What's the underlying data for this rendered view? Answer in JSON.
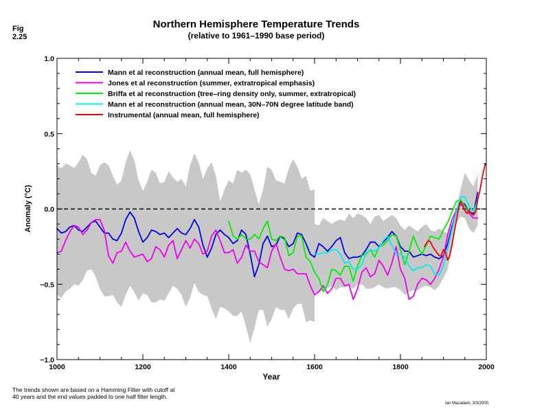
{
  "figure": {
    "label": "Fig\n2.25",
    "footnote": "The trends shown are based on a Hamming Filter with cutoff at\n40 years and the end values padded to one half filter length.",
    "credit": "Ian Macadam, 3/3/2000."
  },
  "chart_data": {
    "type": "line",
    "title": "Northern Hemisphere Temperature Trends",
    "subtitle": "(relative to 1961–1990 base period)",
    "xlabel": "Year",
    "ylabel": "Anomaly (°C)",
    "xlim": [
      1000,
      2000
    ],
    "ylim": [
      -1.0,
      1.0
    ],
    "xticks": [
      1000,
      1200,
      1400,
      1600,
      1800,
      2000
    ],
    "yticks": [
      -1.0,
      -0.5,
      0.0,
      0.5,
      1.0
    ],
    "xtick_labels": [
      "1000",
      "1200",
      "1400",
      "1600",
      "1800",
      "2000"
    ],
    "ytick_labels": [
      "−1.0",
      "−0.5",
      "0.0",
      "0.5",
      "1.0"
    ],
    "zero_line": {
      "y": 0.0,
      "style": "dashed",
      "color": "#000000"
    },
    "legend": {
      "position": "top-left"
    },
    "uncertainty_band": {
      "color": "#c8c8c8",
      "x": [
        1000,
        1010,
        1020,
        1030,
        1040,
        1050,
        1060,
        1070,
        1080,
        1090,
        1100,
        1110,
        1120,
        1130,
        1140,
        1150,
        1160,
        1170,
        1180,
        1190,
        1200,
        1210,
        1220,
        1230,
        1240,
        1250,
        1260,
        1270,
        1280,
        1290,
        1300,
        1310,
        1320,
        1330,
        1340,
        1350,
        1360,
        1370,
        1380,
        1390,
        1400,
        1410,
        1420,
        1430,
        1440,
        1450,
        1460,
        1470,
        1480,
        1490,
        1500,
        1510,
        1520,
        1530,
        1540,
        1550,
        1560,
        1570,
        1580,
        1590,
        1600
      ],
      "upper": [
        0.29,
        0.27,
        0.3,
        0.29,
        0.27,
        0.31,
        0.36,
        0.33,
        0.24,
        0.22,
        0.29,
        0.31,
        0.29,
        0.22,
        0.16,
        0.19,
        0.31,
        0.39,
        0.32,
        0.19,
        0.12,
        0.18,
        0.26,
        0.24,
        0.17,
        0.18,
        0.25,
        0.21,
        0.18,
        0.2,
        0.15,
        0.29,
        0.37,
        0.31,
        0.2,
        0.27,
        0.31,
        0.22,
        0.05,
        0.13,
        0.19,
        0.17,
        0.26,
        0.24,
        0.26,
        0.23,
        0.13,
        0.03,
        0.13,
        0.28,
        0.26,
        0.19,
        0.18,
        0.17,
        0.27,
        0.33,
        0.28,
        0.2,
        0.22,
        0.12,
        0.13
      ],
      "lower": [
        -0.57,
        -0.59,
        -0.55,
        -0.53,
        -0.5,
        -0.51,
        -0.47,
        -0.41,
        -0.4,
        -0.45,
        -0.53,
        -0.58,
        -0.58,
        -0.57,
        -0.62,
        -0.65,
        -0.57,
        -0.51,
        -0.55,
        -0.61,
        -0.56,
        -0.57,
        -0.62,
        -0.62,
        -0.6,
        -0.61,
        -0.56,
        -0.51,
        -0.53,
        -0.57,
        -0.65,
        -0.59,
        -0.49,
        -0.55,
        -0.57,
        -0.58,
        -0.66,
        -0.73,
        -0.65,
        -0.66,
        -0.68,
        -0.71,
        -0.71,
        -0.68,
        -0.78,
        -0.89,
        -0.79,
        -0.67,
        -0.67,
        -0.78,
        -0.73,
        -0.65,
        -0.67,
        -0.67,
        -0.73,
        -0.66,
        -0.63,
        -0.63,
        -0.75,
        -0.74,
        -0.75
      ]
    },
    "band_late": {
      "x": [
        1600,
        1610,
        1620,
        1630,
        1640,
        1650,
        1660,
        1670,
        1680,
        1690,
        1700,
        1710,
        1720,
        1730,
        1740,
        1750,
        1760,
        1770,
        1780,
        1790,
        1800,
        1810,
        1820,
        1830,
        1840,
        1850,
        1860,
        1870,
        1880,
        1890,
        1900,
        1910,
        1920,
        1930,
        1940,
        1950,
        1960,
        1970,
        1980
      ],
      "upper": [
        -0.1,
        -0.11,
        -0.06,
        -0.08,
        -0.1,
        -0.08,
        -0.07,
        -0.08,
        -0.03,
        -0.06,
        -0.03,
        -0.04,
        -0.06,
        -0.1,
        -0.05,
        -0.04,
        -0.08,
        -0.06,
        -0.04,
        -0.06,
        -0.11,
        -0.14,
        -0.11,
        -0.13,
        -0.15,
        -0.12,
        -0.1,
        -0.14,
        -0.15,
        -0.13,
        -0.15,
        -0.16,
        -0.1,
        0.0,
        0.13,
        0.24,
        0.19,
        0.15,
        0.23
      ],
      "lower": [
        -0.56,
        -0.55,
        -0.54,
        -0.53,
        -0.51,
        -0.54,
        -0.52,
        -0.52,
        -0.51,
        -0.53,
        -0.5,
        -0.5,
        -0.53,
        -0.53,
        -0.52,
        -0.5,
        -0.52,
        -0.53,
        -0.52,
        -0.52,
        -0.54,
        -0.57,
        -0.55,
        -0.54,
        -0.54,
        -0.52,
        -0.51,
        -0.52,
        -0.54,
        -0.51,
        -0.46,
        -0.4,
        -0.25,
        -0.1,
        -0.05,
        -0.06,
        -0.13,
        -0.16,
        -0.11
      ]
    },
    "series": [
      {
        "name": "Mann et al reconstruction (annual mean, full hemisphere)",
        "color": "#0000dd",
        "x": [
          1000,
          1010,
          1020,
          1030,
          1040,
          1050,
          1060,
          1070,
          1080,
          1090,
          1100,
          1110,
          1120,
          1130,
          1140,
          1150,
          1160,
          1170,
          1180,
          1190,
          1200,
          1210,
          1220,
          1230,
          1240,
          1250,
          1260,
          1270,
          1280,
          1290,
          1300,
          1310,
          1320,
          1330,
          1340,
          1350,
          1360,
          1370,
          1380,
          1390,
          1400,
          1410,
          1420,
          1430,
          1440,
          1450,
          1460,
          1470,
          1480,
          1490,
          1500,
          1510,
          1520,
          1530,
          1540,
          1550,
          1560,
          1570,
          1580,
          1590,
          1600,
          1610,
          1620,
          1630,
          1640,
          1650,
          1660,
          1670,
          1680,
          1690,
          1700,
          1710,
          1720,
          1730,
          1740,
          1750,
          1760,
          1770,
          1780,
          1790,
          1800,
          1810,
          1820,
          1830,
          1840,
          1850,
          1860,
          1870,
          1880,
          1890,
          1900,
          1910,
          1920,
          1930,
          1940,
          1950,
          1960,
          1970,
          1980
        ],
        "y": [
          -0.13,
          -0.16,
          -0.15,
          -0.12,
          -0.11,
          -0.14,
          -0.15,
          -0.12,
          -0.09,
          -0.08,
          -0.12,
          -0.16,
          -0.16,
          -0.2,
          -0.21,
          -0.16,
          -0.07,
          -0.02,
          -0.06,
          -0.15,
          -0.22,
          -0.19,
          -0.14,
          -0.15,
          -0.17,
          -0.16,
          -0.19,
          -0.16,
          -0.13,
          -0.16,
          -0.17,
          -0.13,
          -0.07,
          -0.12,
          -0.24,
          -0.32,
          -0.26,
          -0.17,
          -0.14,
          -0.17,
          -0.19,
          -0.23,
          -0.21,
          -0.14,
          -0.17,
          -0.3,
          -0.45,
          -0.37,
          -0.23,
          -0.18,
          -0.25,
          -0.24,
          -0.18,
          -0.2,
          -0.25,
          -0.23,
          -0.16,
          -0.17,
          -0.23,
          -0.3,
          -0.32,
          -0.23,
          -0.25,
          -0.28,
          -0.25,
          -0.21,
          -0.19,
          -0.29,
          -0.33,
          -0.32,
          -0.32,
          -0.31,
          -0.27,
          -0.22,
          -0.22,
          -0.25,
          -0.22,
          -0.19,
          -0.15,
          -0.18,
          -0.25,
          -0.28,
          -0.28,
          -0.32,
          -0.31,
          -0.3,
          -0.31,
          -0.3,
          -0.32,
          -0.33,
          -0.31,
          -0.23,
          -0.12,
          -0.02,
          0.05,
          0.03,
          -0.02,
          -0.03,
          0.11
        ]
      },
      {
        "name": "Jones et al reconstruction (summer, extratropical emphasis)",
        "color": "#ee00ee",
        "x": [
          1000,
          1010,
          1020,
          1030,
          1040,
          1050,
          1060,
          1070,
          1080,
          1090,
          1100,
          1110,
          1120,
          1130,
          1140,
          1150,
          1160,
          1170,
          1180,
          1190,
          1200,
          1210,
          1220,
          1230,
          1240,
          1250,
          1260,
          1270,
          1280,
          1290,
          1300,
          1310,
          1320,
          1330,
          1340,
          1350,
          1360,
          1370,
          1380,
          1390,
          1400,
          1410,
          1420,
          1430,
          1440,
          1450,
          1460,
          1470,
          1480,
          1490,
          1500,
          1510,
          1520,
          1530,
          1540,
          1550,
          1560,
          1570,
          1580,
          1590,
          1600,
          1610,
          1620,
          1630,
          1640,
          1650,
          1660,
          1670,
          1680,
          1690,
          1700,
          1710,
          1720,
          1730,
          1740,
          1750,
          1760,
          1770,
          1780,
          1790,
          1800,
          1810,
          1820,
          1830,
          1840,
          1850,
          1860,
          1870,
          1880,
          1890,
          1900,
          1910,
          1920,
          1930,
          1940,
          1950,
          1960,
          1970,
          1980
        ],
        "y": [
          -0.29,
          -0.28,
          -0.21,
          -0.15,
          -0.11,
          -0.12,
          -0.17,
          -0.14,
          -0.09,
          -0.07,
          -0.07,
          -0.14,
          -0.31,
          -0.36,
          -0.29,
          -0.28,
          -0.22,
          -0.28,
          -0.32,
          -0.31,
          -0.3,
          -0.35,
          -0.33,
          -0.25,
          -0.27,
          -0.32,
          -0.24,
          -0.21,
          -0.33,
          -0.27,
          -0.21,
          -0.26,
          -0.2,
          -0.23,
          -0.3,
          -0.28,
          -0.18,
          -0.14,
          -0.21,
          -0.29,
          -0.29,
          -0.27,
          -0.36,
          -0.32,
          -0.24,
          -0.28,
          -0.28,
          -0.35,
          -0.37,
          -0.39,
          -0.28,
          -0.23,
          -0.32,
          -0.4,
          -0.41,
          -0.4,
          -0.43,
          -0.43,
          -0.43,
          -0.51,
          -0.57,
          -0.55,
          -0.51,
          -0.56,
          -0.53,
          -0.46,
          -0.46,
          -0.51,
          -0.5,
          -0.6,
          -0.53,
          -0.42,
          -0.39,
          -0.45,
          -0.43,
          -0.34,
          -0.38,
          -0.44,
          -0.36,
          -0.25,
          -0.4,
          -0.46,
          -0.6,
          -0.58,
          -0.5,
          -0.46,
          -0.47,
          -0.5,
          -0.46,
          -0.4,
          -0.32,
          -0.17,
          -0.07,
          -0.01,
          0.03,
          0.02,
          -0.03,
          -0.06,
          -0.06
        ]
      },
      {
        "name": "Briffa et al reconstruction (tree–ring density only, summer, extratropical)",
        "color": "#00ee00",
        "x": [
          1400,
          1410,
          1420,
          1430,
          1440,
          1450,
          1460,
          1470,
          1480,
          1490,
          1500,
          1510,
          1520,
          1530,
          1540,
          1550,
          1560,
          1570,
          1580,
          1590,
          1600,
          1610,
          1620,
          1630,
          1640,
          1650,
          1660,
          1670,
          1680,
          1690,
          1700,
          1710,
          1720,
          1730,
          1740,
          1750,
          1760,
          1770,
          1780,
          1790,
          1800,
          1810,
          1820,
          1830,
          1840,
          1850,
          1860,
          1870,
          1880,
          1890,
          1900,
          1910,
          1920,
          1930,
          1940,
          1950,
          1960
        ],
        "y": [
          -0.08,
          -0.18,
          -0.2,
          -0.17,
          -0.2,
          -0.2,
          -0.17,
          -0.2,
          -0.13,
          -0.08,
          -0.2,
          -0.21,
          -0.18,
          -0.19,
          -0.31,
          -0.29,
          -0.18,
          -0.18,
          -0.32,
          -0.35,
          -0.42,
          -0.46,
          -0.55,
          -0.5,
          -0.4,
          -0.41,
          -0.44,
          -0.38,
          -0.38,
          -0.48,
          -0.38,
          -0.31,
          -0.3,
          -0.27,
          -0.32,
          -0.25,
          -0.24,
          -0.21,
          -0.17,
          -0.18,
          -0.27,
          -0.37,
          -0.28,
          -0.18,
          -0.25,
          -0.3,
          -0.24,
          -0.18,
          -0.19,
          -0.2,
          -0.14,
          -0.09,
          -0.02,
          0.05,
          0.06,
          0.02,
          -0.02
        ]
      },
      {
        "name": "Mann et al reconstruction (annual mean, 30N–70N degree latitude band)",
        "color": "#00eeee",
        "x": [
          1600,
          1610,
          1620,
          1630,
          1640,
          1650,
          1660,
          1670,
          1680,
          1690,
          1700,
          1710,
          1720,
          1730,
          1740,
          1750,
          1760,
          1770,
          1780,
          1790,
          1800,
          1810,
          1820,
          1830,
          1840,
          1850,
          1860,
          1870,
          1880,
          1890,
          1900,
          1910,
          1920,
          1930,
          1940,
          1950,
          1960,
          1970,
          1980
        ],
        "y": [
          -0.3,
          -0.3,
          -0.29,
          -0.29,
          -0.27,
          -0.27,
          -0.3,
          -0.36,
          -0.35,
          -0.4,
          -0.4,
          -0.37,
          -0.29,
          -0.27,
          -0.28,
          -0.26,
          -0.21,
          -0.18,
          -0.24,
          -0.3,
          -0.3,
          -0.32,
          -0.38,
          -0.41,
          -0.39,
          -0.39,
          -0.37,
          -0.38,
          -0.43,
          -0.44,
          -0.38,
          -0.26,
          -0.14,
          -0.02,
          0.08,
          0.08,
          0.02,
          -0.02,
          0.06
        ]
      },
      {
        "name": "Instrumental (annual mean, full hemisphere)",
        "color": "#ee0000",
        "x": [
          1856,
          1860,
          1865,
          1870,
          1875,
          1880,
          1885,
          1890,
          1895,
          1900,
          1905,
          1910,
          1915,
          1920,
          1925,
          1930,
          1935,
          1940,
          1945,
          1950,
          1955,
          1960,
          1965,
          1970,
          1975,
          1980,
          1985,
          1990,
          1995,
          1998
        ],
        "y": [
          -0.25,
          -0.23,
          -0.21,
          -0.22,
          -0.25,
          -0.27,
          -0.29,
          -0.31,
          -0.31,
          -0.27,
          -0.29,
          -0.34,
          -0.31,
          -0.24,
          -0.16,
          -0.08,
          0.0,
          0.05,
          0.02,
          -0.01,
          -0.03,
          -0.01,
          -0.03,
          -0.04,
          -0.02,
          0.06,
          0.12,
          0.2,
          0.27,
          0.3
        ]
      }
    ]
  }
}
